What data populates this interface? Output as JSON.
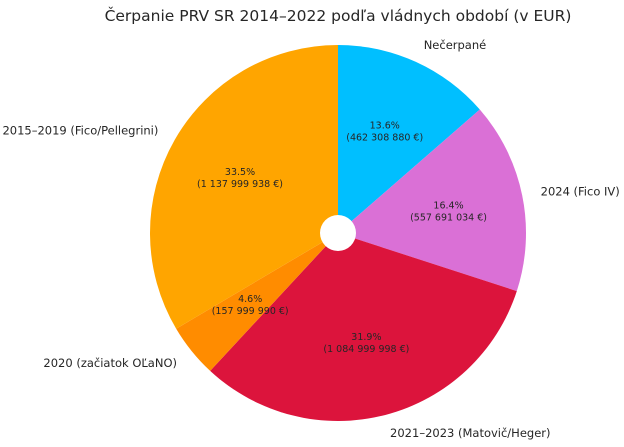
{
  "chart_data": {
    "type": "pie",
    "title": "Čerpanie PRV SR 2014–2022 podľa vládnych období (v EUR)",
    "slices": [
      {
        "name": "Nečerpané",
        "percent": 13.6,
        "value": 462308880,
        "value_label": "(462 308 880 €)",
        "pct_label": "13.6%",
        "color": "#00bfff"
      },
      {
        "name": "2024 (Fico IV)",
        "percent": 16.4,
        "value": 557691034,
        "value_label": "(557 691 034 €)",
        "pct_label": "16.4%",
        "color": "#da70d6"
      },
      {
        "name": "2021–2023 (Matovič/Heger)",
        "percent": 31.9,
        "value": 1084999998,
        "value_label": "(1 084 999 998 €)",
        "pct_label": "31.9%",
        "color": "#dc143c"
      },
      {
        "name": "2020 (začiatok OĽaNO)",
        "percent": 4.6,
        "value": 157999990,
        "value_label": "(157 999 990 €)",
        "pct_label": "4.6%",
        "color": "#ff8c00"
      },
      {
        "name": "2015–2019 (Fico/Pellegrini)",
        "percent": 33.5,
        "value": 1137999938,
        "value_label": "(1 137 999 938 €)",
        "pct_label": "33.5%",
        "color": "#ffa500"
      }
    ],
    "start_angle": "top",
    "direction": "clockwise",
    "donut_hole": true
  }
}
